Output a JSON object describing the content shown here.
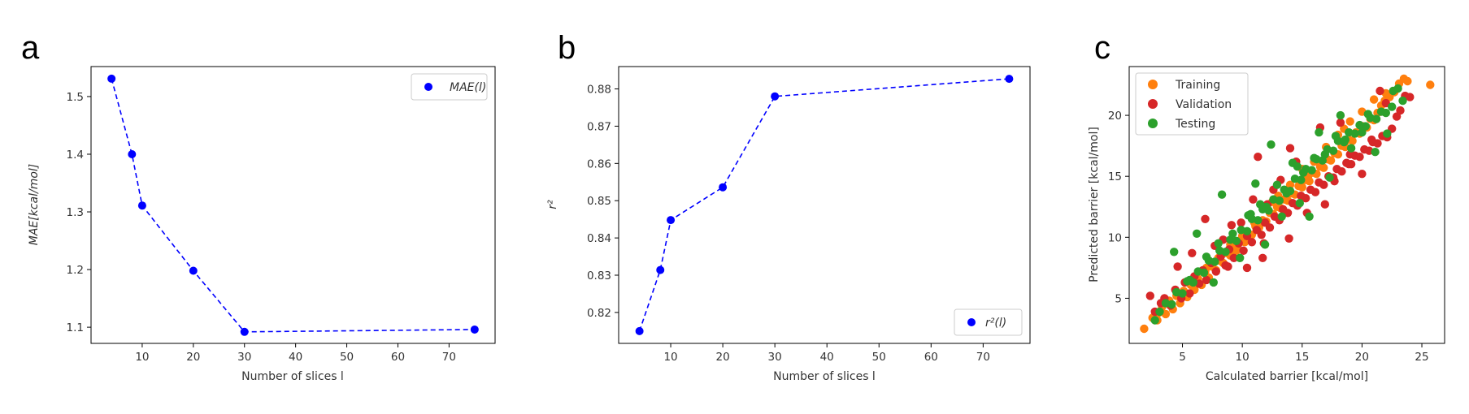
{
  "panels": [
    {
      "letter": "a",
      "chart_data": {
        "type": "line",
        "marker": "circle",
        "line_style": "dashed",
        "x": [
          4,
          8,
          10,
          20,
          30,
          75
        ],
        "series": [
          {
            "name": "MAE(l)",
            "color": "#0000ff",
            "values": [
              1.531,
              1.4,
              1.311,
              1.198,
              1.092,
              1.096
            ]
          }
        ],
        "xlabel": "Number of slices l",
        "ylabel": "MAE[kcal/mol]",
        "xlim": [
          0,
          79
        ],
        "ylim": [
          1.072,
          1.552
        ],
        "xticks": [
          10,
          20,
          30,
          40,
          50,
          60,
          70
        ],
        "yticks": [
          1.1,
          1.2,
          1.3,
          1.4,
          1.5
        ],
        "ytick_decimals": 1,
        "legend_position": "top-right",
        "grid": false
      }
    },
    {
      "letter": "b",
      "chart_data": {
        "type": "line",
        "marker": "circle",
        "line_style": "dashed",
        "x": [
          4,
          8,
          10,
          20,
          30,
          75
        ],
        "series": [
          {
            "name": "r²(l)",
            "color": "#0000ff",
            "values": [
              0.815,
              0.8314,
              0.8448,
              0.8536,
              0.878,
              0.8827
            ]
          }
        ],
        "xlabel": "Number of slices l",
        "ylabel": "r²",
        "xlim": [
          0,
          79
        ],
        "ylim": [
          0.8117,
          0.886
        ],
        "xticks": [
          10,
          20,
          30,
          40,
          50,
          60,
          70
        ],
        "yticks": [
          0.82,
          0.83,
          0.84,
          0.85,
          0.86,
          0.87,
          0.88
        ],
        "ytick_decimals": 2,
        "legend_position": "bottom-right",
        "grid": false
      }
    },
    {
      "letter": "c",
      "chart_data": {
        "type": "scatter",
        "xlabel": "Calculated barrier [kcal/mol]",
        "ylabel": "Predicted barrier [kcal/mol]",
        "xlim": [
          0.55,
          26.9
        ],
        "ylim": [
          1.3,
          24.0
        ],
        "xticks": [
          5,
          10,
          15,
          20,
          25
        ],
        "yticks": [
          5,
          10,
          15,
          20
        ],
        "ytick_decimals": 0,
        "legend_position": "top-left",
        "grid": false,
        "series": [
          {
            "name": "Training",
            "color": "#ff7f0e",
            "x": [
              1.8,
              2.5,
              2.9,
              3.3,
              3.6,
              3.9,
              4.2,
              4.5,
              4.8,
              5.1,
              5.4,
              5.7,
              6.0,
              6.3,
              6.6,
              6.9,
              7.2,
              7.5,
              7.8,
              8.1,
              8.4,
              8.7,
              9.0,
              9.3,
              9.6,
              9.9,
              10.2,
              10.5,
              10.8,
              11.1,
              11.4,
              11.7,
              12.0,
              12.3,
              12.6,
              12.9,
              13.2,
              13.5,
              13.8,
              14.1,
              14.4,
              14.7,
              15.0,
              15.3,
              15.6,
              15.9,
              16.2,
              16.5,
              16.8,
              17.1,
              17.4,
              17.7,
              18.0,
              18.3,
              18.6,
              18.9,
              19.2,
              19.5,
              19.8,
              20.1,
              20.4,
              20.7,
              21.0,
              21.3,
              21.6,
              21.9,
              22.3,
              22.7,
              23.1,
              23.5,
              23.8,
              25.7,
              3.0,
              4.0,
              5.0,
              6.0,
              7.0,
              8.0,
              9.0,
              10.0,
              11.0,
              12.0,
              13.0,
              14.0,
              15.0,
              16.0,
              17.0,
              18.0,
              19.0,
              20.0,
              21.0,
              22.0,
              9.5,
              12.5,
              15.5,
              18.5
            ],
            "y": [
              2.5,
              3.4,
              3.2,
              4.3,
              3.7,
              4.8,
              4.1,
              5.2,
              4.6,
              5.6,
              5.1,
              6.1,
              5.7,
              6.6,
              6.1,
              7.2,
              6.7,
              7.6,
              7.3,
              8.1,
              7.9,
              8.7,
              8.5,
              9.2,
              9.1,
              9.8,
              9.6,
              10.3,
              10.2,
              10.9,
              10.8,
              11.4,
              11.3,
              12.0,
              11.9,
              12.5,
              12.4,
              13.1,
              13.0,
              13.6,
              13.5,
              14.2,
              14.1,
              14.7,
              14.6,
              15.3,
              15.2,
              15.8,
              15.7,
              16.4,
              16.3,
              16.9,
              16.8,
              17.5,
              17.4,
              18.0,
              17.9,
              18.6,
              18.5,
              19.1,
              19.0,
              19.7,
              19.6,
              20.2,
              20.8,
              21.2,
              21.5,
              21.9,
              22.6,
              23.0,
              22.8,
              22.5,
              3.8,
              4.5,
              5.4,
              6.4,
              7.5,
              8.3,
              9.4,
              10.1,
              11.2,
              12.4,
              13.4,
              14.3,
              15.6,
              16.2,
              17.4,
              18.4,
              19.5,
              20.3,
              21.3,
              21.8,
              8.9,
              12.9,
              15.0,
              18.9
            ]
          },
          {
            "name": "Validation",
            "color": "#d62728",
            "x": [
              2.3,
              2.7,
              3.2,
              3.5,
              4.0,
              4.4,
              4.9,
              5.2,
              5.6,
              6.0,
              6.4,
              6.7,
              7.0,
              7.4,
              7.8,
              8.2,
              8.6,
              8.9,
              9.3,
              9.7,
              10.1,
              10.4,
              10.8,
              11.2,
              11.6,
              11.9,
              12.3,
              12.7,
              13.1,
              13.4,
              13.8,
              14.2,
              14.6,
              14.9,
              15.3,
              15.7,
              16.1,
              16.4,
              16.8,
              17.2,
              17.6,
              17.9,
              18.3,
              18.7,
              19.1,
              19.4,
              19.8,
              20.2,
              20.6,
              20.9,
              21.3,
              21.7,
              22.1,
              22.5,
              22.9,
              23.2,
              23.6,
              24.0,
              5.8,
              7.7,
              8.8,
              9.1,
              10.4,
              10.9,
              11.3,
              11.7,
              12.1,
              13.2,
              13.9,
              14.5,
              15.4,
              16.5,
              17.7,
              18.2,
              19.0,
              20.0,
              20.8,
              21.5,
              4.6,
              6.9,
              8.4,
              11.8,
              12.6,
              14.0,
              16.9,
              18.9,
              22.0,
              9.9
            ],
            "y": [
              5.2,
              3.9,
              4.6,
              5.0,
              4.4,
              5.7,
              5.0,
              6.3,
              5.4,
              6.8,
              6.2,
              7.3,
              6.5,
              7.9,
              7.2,
              8.4,
              7.7,
              9.0,
              8.3,
              9.5,
              8.9,
              10.1,
              9.6,
              10.6,
              10.2,
              11.2,
              10.8,
              11.7,
              11.4,
              12.3,
              12.0,
              12.8,
              12.6,
              13.4,
              13.2,
              13.9,
              13.7,
              14.5,
              14.3,
              15.0,
              14.9,
              15.6,
              15.4,
              16.1,
              16.0,
              16.7,
              16.6,
              17.2,
              17.1,
              17.8,
              17.7,
              18.3,
              18.2,
              18.9,
              19.9,
              20.4,
              21.6,
              21.5,
              8.7,
              9.3,
              7.6,
              11.0,
              7.5,
              13.1,
              16.6,
              8.3,
              12.7,
              14.7,
              9.9,
              16.2,
              12.0,
              19.0,
              14.6,
              19.4,
              16.8,
              15.2,
              18.0,
              22.0,
              7.6,
              11.5,
              9.8,
              9.5,
              13.9,
              17.3,
              12.7,
              16.0,
              21.0,
              11.2
            ]
          },
          {
            "name": "Testing",
            "color": "#2ca02c",
            "x": [
              2.7,
              3.1,
              3.6,
              4.1,
              4.5,
              5.0,
              5.4,
              5.9,
              6.3,
              6.8,
              7.2,
              7.7,
              8.1,
              8.6,
              9.0,
              9.5,
              9.9,
              10.4,
              10.8,
              11.3,
              11.7,
              12.2,
              12.6,
              13.1,
              13.5,
              14.0,
              14.4,
              14.9,
              15.3,
              15.8,
              16.2,
              16.7,
              17.1,
              17.6,
              18.0,
              18.5,
              18.9,
              19.4,
              19.8,
              20.3,
              20.7,
              21.2,
              21.6,
              22.0,
              22.5,
              23.0,
              23.4,
              4.3,
              6.2,
              7.6,
              8.3,
              9.8,
              10.5,
              11.1,
              11.9,
              12.4,
              13.3,
              14.2,
              14.8,
              15.6,
              16.4,
              17.3,
              18.2,
              19.1,
              20.0,
              21.1,
              22.1,
              5.6,
              7.0,
              8.0,
              9.2,
              10.7,
              12.0,
              13.7,
              15.1,
              16.9,
              18.6,
              20.5,
              22.6,
              11.5,
              12.9,
              14.6,
              16.0,
              17.8
            ],
            "y": [
              3.2,
              3.9,
              4.6,
              4.5,
              5.5,
              5.4,
              6.4,
              6.3,
              7.2,
              7.1,
              8.1,
              8.0,
              8.9,
              8.8,
              9.8,
              9.7,
              10.6,
              10.5,
              11.5,
              11.4,
              12.3,
              12.2,
              13.1,
              13.0,
              13.9,
              13.8,
              14.8,
              14.7,
              15.6,
              15.5,
              16.4,
              16.3,
              17.2,
              17.1,
              17.9,
              17.8,
              18.6,
              18.5,
              19.2,
              19.1,
              19.8,
              19.7,
              20.3,
              20.2,
              20.7,
              22.2,
              21.2,
              8.8,
              10.3,
              6.3,
              13.5,
              8.3,
              11.8,
              14.4,
              9.4,
              17.6,
              11.7,
              16.1,
              12.8,
              11.7,
              18.6,
              14.9,
              20.0,
              17.3,
              18.6,
              17.0,
              18.5,
              6.5,
              8.4,
              9.5,
              10.3,
              11.9,
              12.5,
              13.6,
              15.3,
              16.8,
              18.0,
              20.1,
              22.0,
              12.7,
              14.3,
              15.8,
              16.5,
              18.3
            ]
          }
        ]
      }
    }
  ]
}
